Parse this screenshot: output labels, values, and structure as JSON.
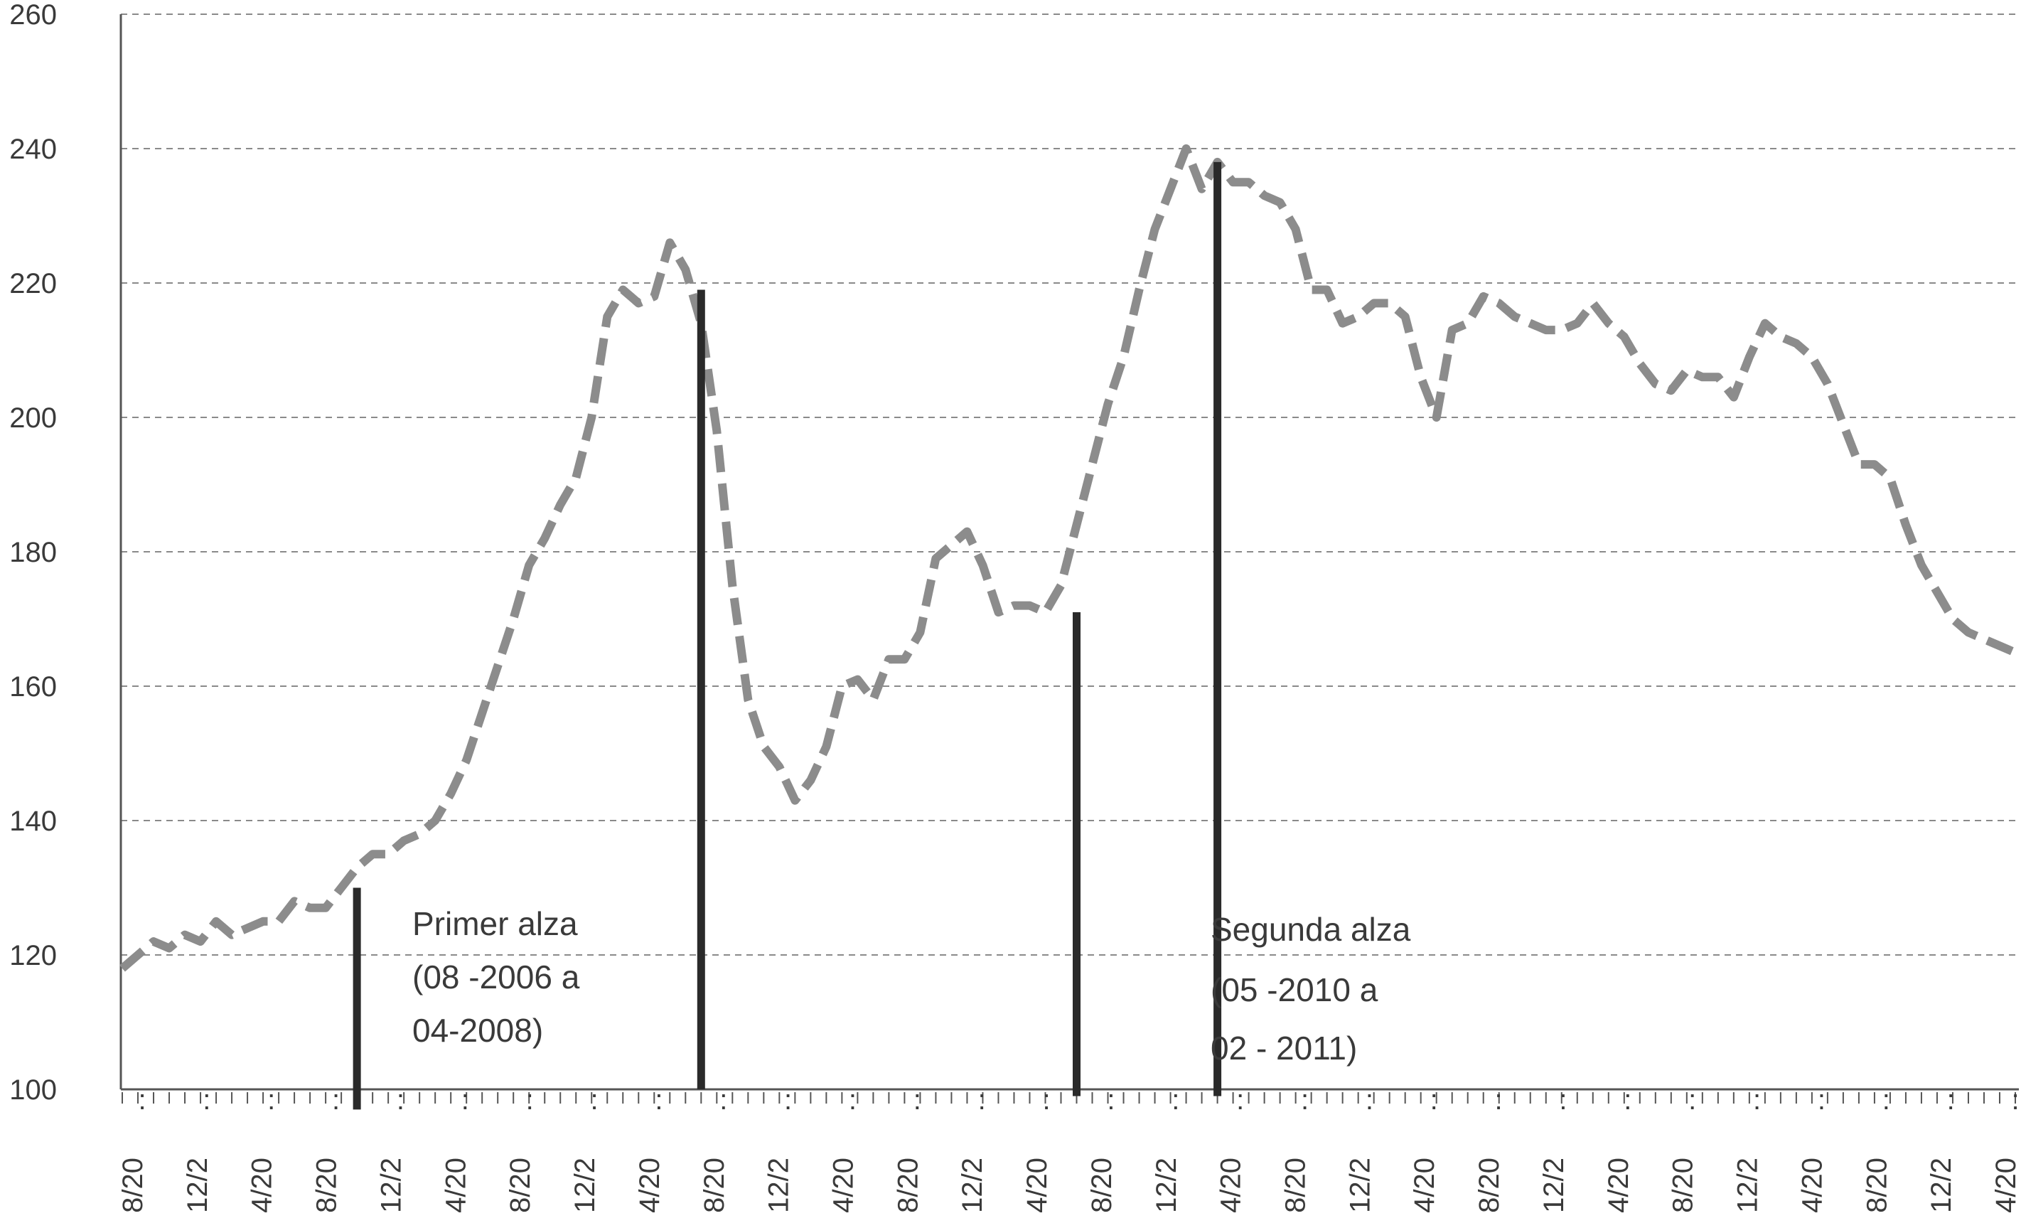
{
  "chart_data": {
    "type": "line",
    "title": "",
    "xlabel": "",
    "ylabel": "",
    "ylim": [
      100,
      260
    ],
    "yticks": [
      100,
      120,
      140,
      160,
      180,
      200,
      220,
      240,
      260
    ],
    "grid": true,
    "x_tick_labels": [
      "8/20",
      "12/2",
      "4/20",
      "8/20",
      "12/2",
      "4/20",
      "8/20",
      "12/2",
      "4/20",
      "8/20",
      "12/2",
      "4/20",
      "8/20",
      "12/2",
      "4/20",
      "8/20",
      "12/2",
      "4/20",
      "8/20",
      "12/2",
      "4/20",
      "8/20",
      "12/2",
      "4/20",
      "8/20",
      "12/2",
      "4/20",
      "8/20",
      "12/2",
      "4/20"
    ],
    "series": [
      {
        "values": [
          118,
          120,
          122,
          121,
          123,
          122,
          125,
          123,
          124,
          125,
          125,
          128,
          127,
          127,
          130,
          133,
          135,
          135,
          137,
          138,
          140,
          144,
          149,
          156,
          163,
          170,
          178,
          182,
          187,
          191,
          200,
          215,
          219,
          217,
          218,
          226,
          222,
          214,
          198,
          175,
          158,
          151,
          148,
          143,
          146,
          151,
          160,
          161,
          158,
          164,
          164,
          168,
          179,
          181,
          183,
          178,
          171,
          172,
          172,
          171,
          175,
          184,
          193,
          202,
          209,
          219,
          228,
          234,
          240,
          234,
          238,
          235,
          235,
          233,
          232,
          228,
          219,
          219,
          214,
          215,
          217,
          217,
          215,
          206,
          200,
          213,
          214,
          218,
          217,
          215,
          214,
          213,
          213,
          214,
          217,
          214,
          212,
          208,
          205,
          204,
          207,
          206,
          206,
          203,
          209,
          214,
          212,
          211,
          209,
          205,
          199,
          193,
          193,
          191,
          184,
          178,
          174,
          170,
          168,
          167,
          166,
          165
        ],
        "color": "#8c8c8c",
        "style": "dashed"
      }
    ],
    "vertical_markers": [
      {
        "index": 15,
        "from": 97,
        "to": 130
      },
      {
        "index": 37,
        "from": 100,
        "to": 219
      },
      {
        "index": 61,
        "from": 99,
        "to": 171
      },
      {
        "index": 70,
        "from": 99,
        "to": 238
      }
    ],
    "annotations": [
      {
        "lines": [
          "Primer   alza",
          "(08 -2006 a",
          "04-2008)"
        ]
      },
      {
        "lines": [
          "Segunda alza",
          "(05  -2010 a",
          "02  -  2011)"
        ]
      }
    ]
  }
}
